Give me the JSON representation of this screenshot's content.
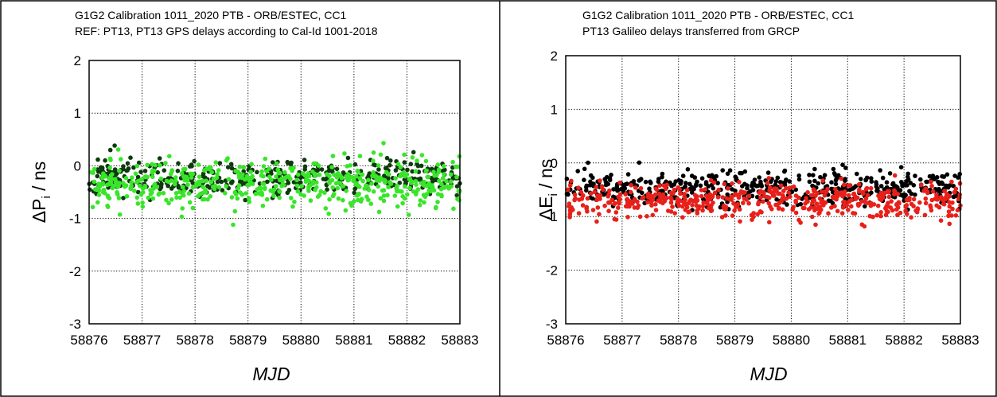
{
  "chart_data": [
    {
      "type": "scatter",
      "title": "G1G2 Calibration 1011_2020 PTB - ORB/ESTEC, CC1",
      "subtitle": "REF: PT13, PT13 GPS delays according to Cal-Id 1001-2018",
      "ylabel_main": "ΔP",
      "ylabel_sub": "i",
      "ylabel_unit": " / ns",
      "xlabel": "MJD",
      "xlim": [
        58876,
        58883
      ],
      "ylim": [
        -3,
        2
      ],
      "xticks": [
        "58876",
        "58877",
        "58878",
        "58879",
        "58880",
        "58881",
        "58882",
        "58883"
      ],
      "yticks": [
        "2",
        "1",
        "0",
        "-1",
        "-2",
        "-3"
      ],
      "grid": true,
      "series": [
        {
          "color": "#0e3a0e",
          "center": -0.22,
          "spread": 0.17,
          "count": 420,
          "seed": 11
        },
        {
          "color": "#39e52a",
          "center": -0.32,
          "spread": 0.22,
          "count": 520,
          "seed": 23
        }
      ]
    },
    {
      "type": "scatter",
      "title": "G1G2 Calibration 1011_2020 PTB - ORB/ESTEC, CC1",
      "subtitle": "PT13 Galileo delays transferred from GRCP",
      "ylabel_main": "ΔE",
      "ylabel_sub": "i",
      "ylabel_unit": " / ns",
      "xlabel": "MJD",
      "xlim": [
        58876,
        58883
      ],
      "ylim": [
        -3,
        2
      ],
      "xticks": [
        "58876",
        "58877",
        "58878",
        "58879",
        "58880",
        "58881",
        "58882",
        "58883"
      ],
      "yticks": [
        "2",
        "1",
        "0",
        "-1",
        "-2",
        "-3"
      ],
      "grid": true,
      "series": [
        {
          "color": "#000000",
          "center": -0.48,
          "spread": 0.16,
          "count": 480,
          "seed": 37
        },
        {
          "color": "#e8201a",
          "center": -0.7,
          "spread": 0.17,
          "count": 520,
          "seed": 53
        }
      ]
    }
  ]
}
